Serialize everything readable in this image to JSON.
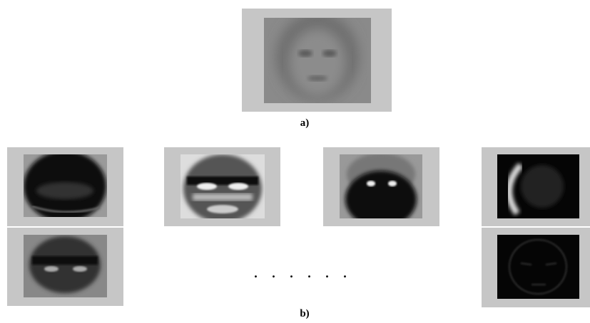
{
  "figure": {
    "caption_a": "a)",
    "caption_b": "b)",
    "ellipsis": ". . . . . ."
  }
}
